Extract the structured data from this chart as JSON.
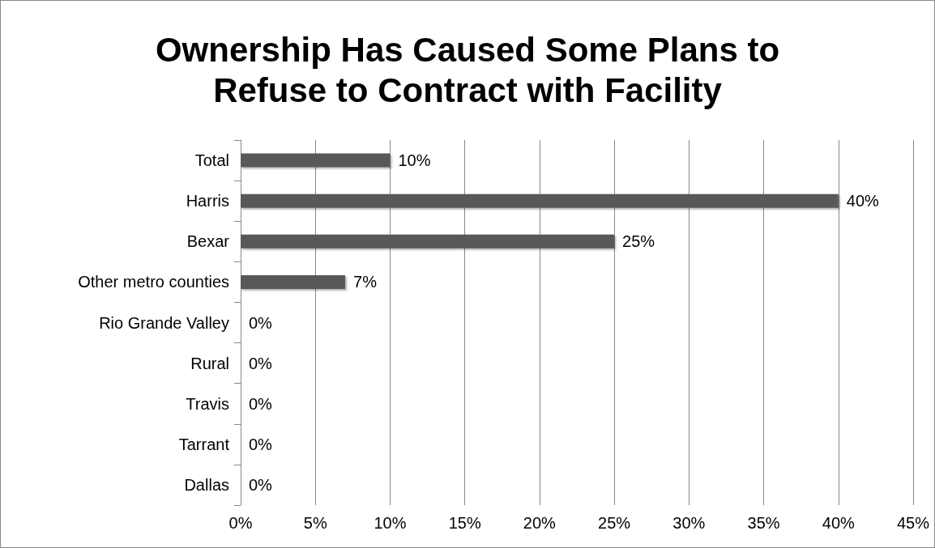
{
  "chart_data": {
    "type": "bar",
    "orientation": "horizontal",
    "title": "Ownership Has Caused Some Plans to\nRefuse to Contract with Facility",
    "categories": [
      "Total",
      "Harris",
      "Bexar",
      "Other metro counties",
      "Rio Grande Valley",
      "Rural",
      "Travis",
      "Tarrant",
      "Dallas"
    ],
    "values": [
      10,
      40,
      25,
      7,
      0,
      0,
      0,
      0,
      0
    ],
    "value_labels": [
      "10%",
      "40%",
      "25%",
      "7%",
      "0%",
      "0%",
      "0%",
      "0%",
      "0%"
    ],
    "color": "#595959",
    "xlim": [
      0,
      45
    ],
    "xticks": [
      {
        "value": 0,
        "label": "0%"
      },
      {
        "value": 5,
        "label": "5%"
      },
      {
        "value": 10,
        "label": "10%"
      },
      {
        "value": 15,
        "label": "15%"
      },
      {
        "value": 20,
        "label": "20%"
      },
      {
        "value": 25,
        "label": "25%"
      },
      {
        "value": 30,
        "label": "30%"
      },
      {
        "value": 35,
        "label": "35%"
      },
      {
        "value": 40,
        "label": "40%"
      },
      {
        "value": 45,
        "label": "45%"
      }
    ],
    "grid": "x"
  }
}
